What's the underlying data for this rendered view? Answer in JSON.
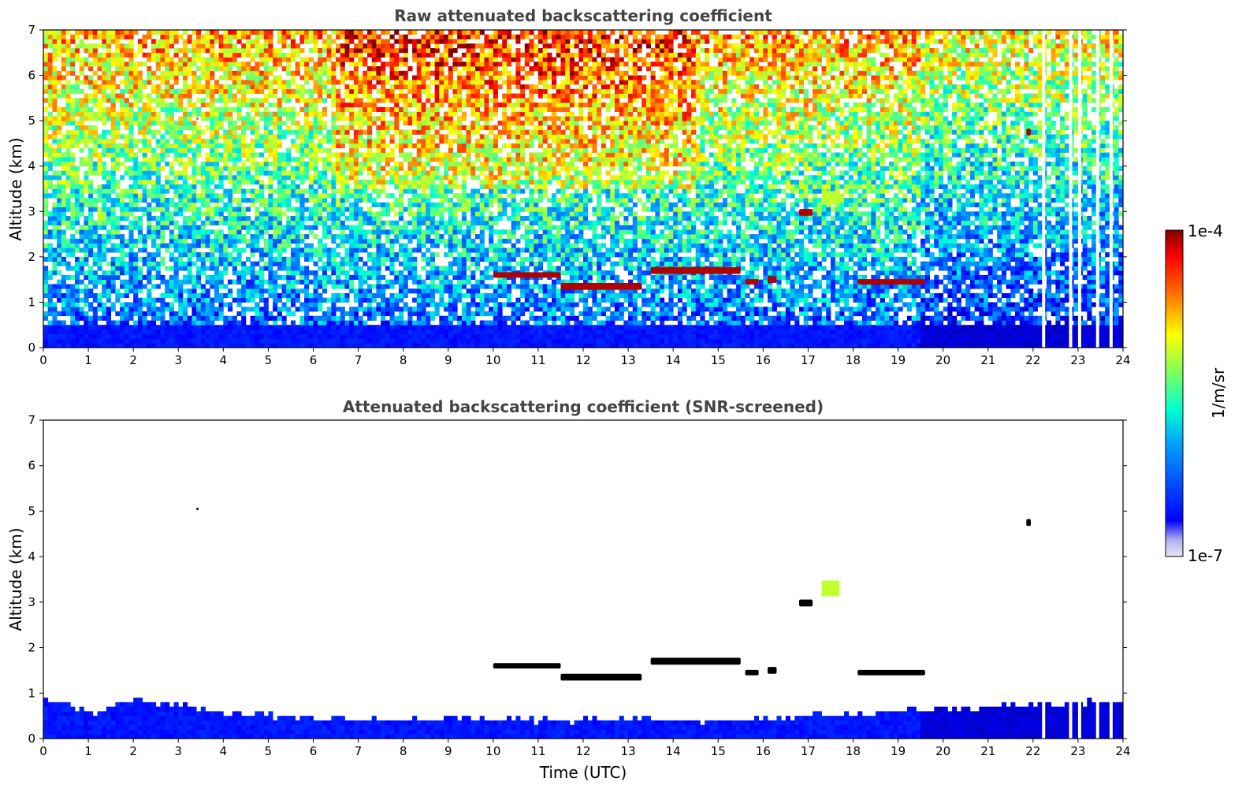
{
  "chart_data": [
    {
      "type": "heatmap",
      "title": "Raw attenuated backscattering coefficient",
      "xlabel": "",
      "ylabel": "Altitude (km)",
      "xlim": [
        0,
        24
      ],
      "ylim": [
        0,
        7
      ],
      "xticks": [
        "0",
        "1",
        "2",
        "3",
        "4",
        "5",
        "6",
        "7",
        "8",
        "9",
        "10",
        "11",
        "12",
        "13",
        "14",
        "15",
        "16",
        "17",
        "18",
        "19",
        "20",
        "21",
        "22",
        "23",
        "24"
      ],
      "yticks": [
        "0",
        "1",
        "2",
        "3",
        "4",
        "5",
        "6",
        "7"
      ],
      "grid": false,
      "background_noise": "high; increases with altitude, strongest 7–14 UTC above 4 km",
      "boundary_layer": {
        "alt_top_km": 0.5,
        "level": "low-mid"
      },
      "features": [
        {
          "kind": "cloud",
          "t_start": 10.0,
          "t_end": 11.5,
          "alt_km": 1.6,
          "thickness_km": 0.12,
          "level": "max"
        },
        {
          "kind": "cloud",
          "t_start": 11.5,
          "t_end": 13.3,
          "alt_km": 1.35,
          "thickness_km": 0.15,
          "level": "max"
        },
        {
          "kind": "cloud",
          "t_start": 13.5,
          "t_end": 15.5,
          "alt_km": 1.7,
          "thickness_km": 0.15,
          "level": "max"
        },
        {
          "kind": "cloud",
          "t_start": 15.6,
          "t_end": 15.9,
          "alt_km": 1.45,
          "thickness_km": 0.12,
          "level": "max"
        },
        {
          "kind": "cloud",
          "t_start": 16.1,
          "t_end": 16.3,
          "alt_km": 1.5,
          "thickness_km": 0.15,
          "level": "max"
        },
        {
          "kind": "cloud",
          "t_start": 18.1,
          "t_end": 19.6,
          "alt_km": 1.45,
          "thickness_km": 0.12,
          "level": "max"
        },
        {
          "kind": "cloud",
          "t_start": 16.8,
          "t_end": 17.1,
          "alt_km": 2.98,
          "thickness_km": 0.15,
          "level": "max"
        },
        {
          "kind": "cloud",
          "t_start": 21.85,
          "t_end": 21.95,
          "alt_km": 4.75,
          "thickness_km": 0.15,
          "level": "max"
        },
        {
          "kind": "cloud",
          "t_start": 3.4,
          "t_end": 3.45,
          "alt_km": 5.05,
          "thickness_km": 0.05,
          "level": "high"
        },
        {
          "kind": "aerosol",
          "t_start": 17.3,
          "t_end": 17.7,
          "alt_km": 3.3,
          "thickness_km": 0.3,
          "level": "mid-high"
        }
      ],
      "data_gaps_utc": [
        22.2,
        22.8,
        23.0,
        23.4,
        23.7
      ]
    },
    {
      "type": "heatmap",
      "title": "Attenuated backscattering coefficient (SNR-screened)",
      "xlabel": "Time (UTC)",
      "ylabel": "Altitude (km)",
      "xlim": [
        0,
        24
      ],
      "ylim": [
        0,
        7
      ],
      "xticks": [
        "0",
        "1",
        "2",
        "3",
        "4",
        "5",
        "6",
        "7",
        "8",
        "9",
        "10",
        "11",
        "12",
        "13",
        "14",
        "15",
        "16",
        "17",
        "18",
        "19",
        "20",
        "21",
        "22",
        "23",
        "24"
      ],
      "yticks": [
        "0",
        "1",
        "2",
        "3",
        "4",
        "5",
        "6",
        "7"
      ],
      "grid": false,
      "background_noise": "removed (white)",
      "boundary_layer_top_km": [
        [
          0,
          0.9
        ],
        [
          1.1,
          0.55
        ],
        [
          2,
          0.85
        ],
        [
          3,
          0.75
        ],
        [
          4,
          0.55
        ],
        [
          5,
          0.5
        ],
        [
          6,
          0.45
        ],
        [
          7,
          0.45
        ],
        [
          8,
          0.4
        ],
        [
          9,
          0.45
        ],
        [
          10,
          0.45
        ],
        [
          11,
          0.4
        ],
        [
          12,
          0.4
        ],
        [
          13,
          0.45
        ],
        [
          14,
          0.4
        ],
        [
          15,
          0.35
        ],
        [
          16,
          0.45
        ],
        [
          17,
          0.5
        ],
        [
          18,
          0.55
        ],
        [
          19,
          0.6
        ],
        [
          20,
          0.65
        ],
        [
          21,
          0.7
        ],
        [
          22,
          0.75
        ],
        [
          23,
          0.8
        ],
        [
          24,
          0.8
        ]
      ],
      "features": [
        {
          "kind": "cloud",
          "t_start": 10.0,
          "t_end": 11.5,
          "alt_km": 1.6,
          "thickness_km": 0.12,
          "level": "saturated"
        },
        {
          "kind": "cloud",
          "t_start": 11.5,
          "t_end": 13.3,
          "alt_km": 1.35,
          "thickness_km": 0.15,
          "level": "saturated"
        },
        {
          "kind": "cloud",
          "t_start": 13.5,
          "t_end": 15.5,
          "alt_km": 1.7,
          "thickness_km": 0.15,
          "level": "saturated"
        },
        {
          "kind": "cloud",
          "t_start": 15.6,
          "t_end": 15.9,
          "alt_km": 1.45,
          "thickness_km": 0.12,
          "level": "saturated"
        },
        {
          "kind": "cloud",
          "t_start": 16.1,
          "t_end": 16.3,
          "alt_km": 1.5,
          "thickness_km": 0.15,
          "level": "saturated"
        },
        {
          "kind": "cloud",
          "t_start": 18.1,
          "t_end": 19.6,
          "alt_km": 1.45,
          "thickness_km": 0.12,
          "level": "saturated"
        },
        {
          "kind": "cloud",
          "t_start": 16.8,
          "t_end": 17.1,
          "alt_km": 2.98,
          "thickness_km": 0.15,
          "level": "saturated"
        },
        {
          "kind": "cloud",
          "t_start": 21.85,
          "t_end": 21.95,
          "alt_km": 4.75,
          "thickness_km": 0.15,
          "level": "saturated"
        },
        {
          "kind": "cloud",
          "t_start": 3.4,
          "t_end": 3.45,
          "alt_km": 5.05,
          "thickness_km": 0.05,
          "level": "saturated"
        },
        {
          "kind": "aerosol",
          "t_start": 17.3,
          "t_end": 17.7,
          "alt_km": 3.3,
          "thickness_km": 0.35,
          "level": "mid-high"
        }
      ],
      "data_gaps_utc": [
        22.2,
        22.8,
        23.0,
        23.4,
        23.7
      ]
    }
  ],
  "colorbar": {
    "label": "1/m/sr",
    "min_label": "1e-7",
    "max_label": "1e-4",
    "scale": "log",
    "colormap": "jet",
    "under_color": "#ffffff",
    "over_color": "#000000"
  }
}
